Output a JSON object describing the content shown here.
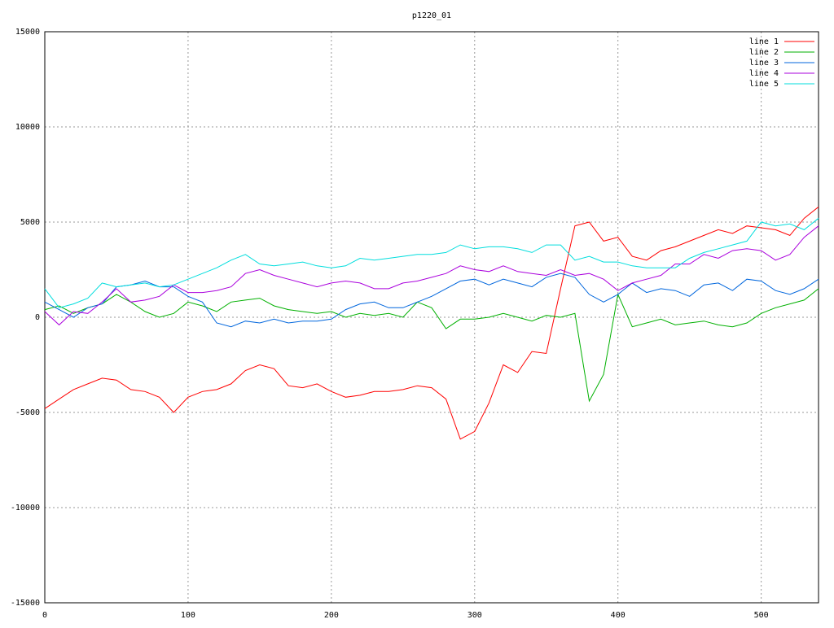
{
  "chart_data": {
    "type": "line",
    "title": "p1220_01",
    "x": [
      0,
      10,
      20,
      30,
      40,
      50,
      60,
      70,
      80,
      90,
      100,
      110,
      120,
      130,
      140,
      150,
      160,
      170,
      180,
      190,
      200,
      210,
      220,
      230,
      240,
      250,
      260,
      270,
      280,
      290,
      300,
      310,
      320,
      330,
      340,
      350,
      360,
      370,
      380,
      390,
      400,
      410,
      420,
      430,
      440,
      450,
      460,
      470,
      480,
      490,
      500,
      510,
      520,
      530,
      540
    ],
    "series": [
      {
        "name": "line 1",
        "color": "#ff0000",
        "values": [
          -4800,
          -4300,
          -3800,
          -3500,
          -3200,
          -3300,
          -3800,
          -3900,
          -4200,
          -5000,
          -4200,
          -3900,
          -3800,
          -3500,
          -2800,
          -2500,
          -2700,
          -3600,
          -3700,
          -3500,
          -3900,
          -4200,
          -4100,
          -3900,
          -3900,
          -3800,
          -3600,
          -3700,
          -4300,
          -6400,
          -6000,
          -4500,
          -2500,
          -2900,
          -1800,
          -1900,
          1500,
          4800,
          5000,
          4000,
          4200,
          3200,
          3000,
          3500,
          3700,
          4000,
          4300,
          4600,
          4400,
          4800,
          4700,
          4600,
          4300,
          5200,
          5800
        ]
      },
      {
        "name": "line 2",
        "color": "#00b000",
        "values": [
          400,
          600,
          200,
          500,
          700,
          1200,
          800,
          300,
          0,
          200,
          800,
          600,
          300,
          800,
          900,
          1000,
          600,
          400,
          300,
          200,
          300,
          0,
          200,
          100,
          200,
          0,
          800,
          500,
          -600,
          -100,
          -100,
          0,
          200,
          0,
          -200,
          100,
          0,
          200,
          -4400,
          -3000,
          1200,
          -500,
          -300,
          -100,
          -400,
          -300,
          -200,
          -400,
          -500,
          -300,
          200,
          500,
          700,
          900,
          1500
        ]
      },
      {
        "name": "line 3",
        "color": "#0066dd",
        "values": [
          800,
          400,
          0,
          500,
          700,
          1600,
          1700,
          1900,
          1600,
          1600,
          1100,
          800,
          -300,
          -500,
          -200,
          -300,
          -100,
          -300,
          -200,
          -200,
          -100,
          400,
          700,
          800,
          500,
          500,
          800,
          1100,
          1500,
          1900,
          2000,
          1700,
          2000,
          1800,
          1600,
          2100,
          2300,
          2100,
          1200,
          800,
          1200,
          1800,
          1300,
          1500,
          1400,
          1100,
          1700,
          1800,
          1400,
          2000,
          1900,
          1400,
          1200,
          1500,
          2000
        ]
      },
      {
        "name": "line 4",
        "color": "#aa00dd",
        "values": [
          300,
          -400,
          300,
          200,
          800,
          1500,
          800,
          900,
          1100,
          1700,
          1300,
          1300,
          1400,
          1600,
          2300,
          2500,
          2200,
          2000,
          1800,
          1600,
          1800,
          1900,
          1800,
          1500,
          1500,
          1800,
          1900,
          2100,
          2300,
          2700,
          2500,
          2400,
          2700,
          2400,
          2300,
          2200,
          2500,
          2200,
          2300,
          2000,
          1400,
          1800,
          2000,
          2200,
          2800,
          2800,
          3300,
          3100,
          3500,
          3600,
          3500,
          3000,
          3300,
          4200,
          4800
        ]
      },
      {
        "name": "line 5",
        "color": "#00dddd",
        "values": [
          1500,
          500,
          700,
          1000,
          1800,
          1600,
          1700,
          1800,
          1600,
          1700,
          2000,
          2300,
          2600,
          3000,
          3300,
          2800,
          2700,
          2800,
          2900,
          2700,
          2600,
          2700,
          3100,
          3000,
          3100,
          3200,
          3300,
          3300,
          3400,
          3800,
          3600,
          3700,
          3700,
          3600,
          3400,
          3800,
          3800,
          3000,
          3200,
          2900,
          2900,
          2700,
          2600,
          2600,
          2600,
          3100,
          3400,
          3600,
          3800,
          4000,
          5000,
          4800,
          4900,
          4600,
          5200
        ]
      }
    ],
    "xlim": [
      0,
      540
    ],
    "ylim": [
      -15000,
      15000
    ],
    "xticks": [
      0,
      100,
      200,
      300,
      400,
      500
    ],
    "yticks": [
      -15000,
      -10000,
      -5000,
      0,
      5000,
      10000,
      15000
    ],
    "grid": true,
    "legend": "top-right"
  }
}
